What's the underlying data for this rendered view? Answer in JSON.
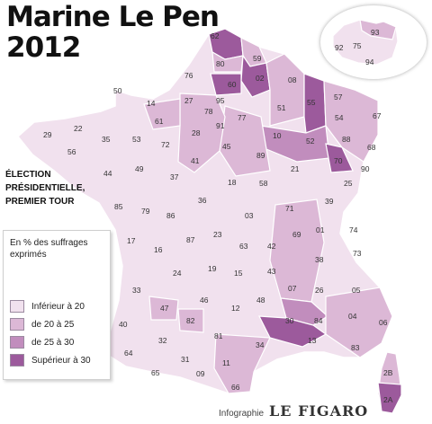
{
  "title_line1": "Marine Le Pen",
  "title_line2": "2012",
  "subtitle": "ÉLECTION PRÉSIDENTIELLE, PREMIER TOUR",
  "legend": {
    "title": "En % des suffrages exprimés",
    "items": [
      {
        "label": "Inférieur à 20",
        "color": "#f1e1ee"
      },
      {
        "label": "de 20 à 25",
        "color": "#dcb8d6"
      },
      {
        "label": "de 25 à 30",
        "color": "#c18dbd"
      },
      {
        "label": "Supérieur à 30",
        "color": "#9c5a9c"
      }
    ]
  },
  "credit": {
    "label": "Infographie",
    "brand": "LE FIGARO"
  },
  "colors": {
    "land": "#f1e1ee",
    "border": "#ffffff",
    "background": "#ffffff"
  },
  "departments": [
    {
      "code": "62",
      "class": 3
    },
    {
      "code": "59",
      "class": 2
    },
    {
      "code": "80",
      "class": 2
    },
    {
      "code": "76",
      "class": 1
    },
    {
      "code": "02",
      "class": 3
    },
    {
      "code": "08",
      "class": 2
    },
    {
      "code": "60",
      "class": 3
    },
    {
      "code": "50",
      "class": 0
    },
    {
      "code": "14",
      "class": 0
    },
    {
      "code": "27",
      "class": 1
    },
    {
      "code": "95",
      "class": 1
    },
    {
      "code": "78",
      "class": 0
    },
    {
      "code": "51",
      "class": 2
    },
    {
      "code": "55",
      "class": 3
    },
    {
      "code": "57",
      "class": 1
    },
    {
      "code": "54",
      "class": 1
    },
    {
      "code": "67",
      "class": 1
    },
    {
      "code": "61",
      "class": 1
    },
    {
      "code": "91",
      "class": 0
    },
    {
      "code": "77",
      "class": 0
    },
    {
      "code": "29",
      "class": 0
    },
    {
      "code": "22",
      "class": 0
    },
    {
      "code": "35",
      "class": 0
    },
    {
      "code": "53",
      "class": 0
    },
    {
      "code": "28",
      "class": 1
    },
    {
      "code": "10",
      "class": 3
    },
    {
      "code": "52",
      "class": 3
    },
    {
      "code": "88",
      "class": 1
    },
    {
      "code": "68",
      "class": 1
    },
    {
      "code": "56",
      "class": 0
    },
    {
      "code": "72",
      "class": 0
    },
    {
      "code": "45",
      "class": 1
    },
    {
      "code": "89",
      "class": 1
    },
    {
      "code": "70",
      "class": 3
    },
    {
      "code": "41",
      "class": 1
    },
    {
      "code": "44",
      "class": 0
    },
    {
      "code": "49",
      "class": 0
    },
    {
      "code": "37",
      "class": 0
    },
    {
      "code": "21",
      "class": 0
    },
    {
      "code": "90",
      "class": 1
    },
    {
      "code": "25",
      "class": 0
    },
    {
      "code": "18",
      "class": 0
    },
    {
      "code": "58",
      "class": 0
    },
    {
      "code": "85",
      "class": 0
    },
    {
      "code": "79",
      "class": 0
    },
    {
      "code": "36",
      "class": 0
    },
    {
      "code": "71",
      "class": 1
    },
    {
      "code": "39",
      "class": 1
    },
    {
      "code": "86",
      "class": 0
    },
    {
      "code": "03",
      "class": 0
    },
    {
      "code": "01",
      "class": 1
    },
    {
      "code": "74",
      "class": 0
    },
    {
      "code": "17",
      "class": 0
    },
    {
      "code": "87",
      "class": 0
    },
    {
      "code": "23",
      "class": 0
    },
    {
      "code": "69",
      "class": 1
    },
    {
      "code": "16",
      "class": 0
    },
    {
      "code": "63",
      "class": 0
    },
    {
      "code": "42",
      "class": 0
    },
    {
      "code": "73",
      "class": 0
    },
    {
      "code": "24",
      "class": 0
    },
    {
      "code": "19",
      "class": 0
    },
    {
      "code": "15",
      "class": 0
    },
    {
      "code": "43",
      "class": 1
    },
    {
      "code": "38",
      "class": 0
    },
    {
      "code": "33",
      "class": 0
    },
    {
      "code": "07",
      "class": 1
    },
    {
      "code": "26",
      "class": 1
    },
    {
      "code": "05",
      "class": 0
    },
    {
      "code": "46",
      "class": 0
    },
    {
      "code": "48",
      "class": 0
    },
    {
      "code": "47",
      "class": 1
    },
    {
      "code": "12",
      "class": 0
    },
    {
      "code": "82",
      "class": 1
    },
    {
      "code": "40",
      "class": 0
    },
    {
      "code": "81",
      "class": 0
    },
    {
      "code": "30",
      "class": 3
    },
    {
      "code": "84",
      "class": 3
    },
    {
      "code": "04",
      "class": 1
    },
    {
      "code": "06",
      "class": 1
    },
    {
      "code": "32",
      "class": 0
    },
    {
      "code": "34",
      "class": 1
    },
    {
      "code": "13",
      "class": 2
    },
    {
      "code": "83",
      "class": 1
    },
    {
      "code": "64",
      "class": 0
    },
    {
      "code": "31",
      "class": 0
    },
    {
      "code": "65",
      "class": 0
    },
    {
      "code": "09",
      "class": 0
    },
    {
      "code": "11",
      "class": 1
    },
    {
      "code": "66",
      "class": 1
    },
    {
      "code": "2B",
      "class": 1
    },
    {
      "code": "2A",
      "class": 3
    }
  ],
  "paris_inset": [
    {
      "code": "92",
      "class": 0
    },
    {
      "code": "75",
      "class": 0
    },
    {
      "code": "93",
      "class": 1
    },
    {
      "code": "94",
      "class": 0
    }
  ]
}
